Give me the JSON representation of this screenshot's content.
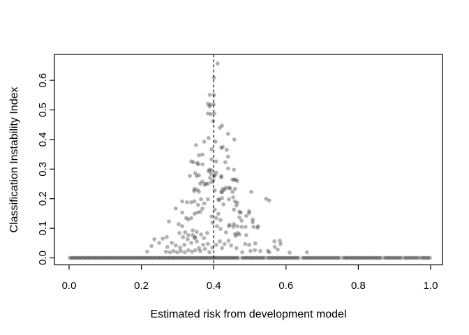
{
  "figure": {
    "background": "#ffffff",
    "title": ""
  },
  "chart_data": {
    "type": "scatter",
    "title": "",
    "xlabel": "Estimated risk from development model",
    "ylabel": "Classification Instability Index",
    "xlim": [
      -0.04,
      1.04
    ],
    "ylim": [
      -0.026,
      0.688
    ],
    "grid": false,
    "legend": "none",
    "axis_color": "#000000",
    "xticks": {
      "values": [
        0.0,
        0.2,
        0.4,
        0.6,
        0.8,
        1.0
      ],
      "labels": [
        "0.0",
        "0.2",
        "0.4",
        "0.6",
        "0.8",
        "1.0"
      ]
    },
    "yticks": {
      "values": [
        0.0,
        0.1,
        0.2,
        0.3,
        0.4,
        0.5,
        0.6
      ],
      "labels": [
        "0.0",
        "0.1",
        "0.2",
        "0.3",
        "0.4",
        "0.5",
        "0.6"
      ]
    },
    "vline": {
      "x": 0.4,
      "style": "dashed",
      "color": "#000000"
    },
    "point_style": {
      "color": "#000000",
      "opacity": 0.3,
      "radius_px": 2.9
    },
    "baseline_runs": [
      {
        "y": 0,
        "x_start": 0.002,
        "x_end": 0.468,
        "count": 110
      },
      {
        "y": 0,
        "x_start": 0.478,
        "x_end": 0.541,
        "count": 15
      },
      {
        "y": 0,
        "x_start": 0.549,
        "x_end": 0.635,
        "count": 20
      },
      {
        "y": 0,
        "x_start": 0.646,
        "x_end": 0.748,
        "count": 23
      },
      {
        "y": 0,
        "x_start": 0.758,
        "x_end": 0.863,
        "count": 24
      },
      {
        "y": 0,
        "x_start": 0.872,
        "x_end": 0.919,
        "count": 11
      },
      {
        "y": 0,
        "x_start": 0.927,
        "x_end": 0.967,
        "count": 9
      },
      {
        "y": 0,
        "x_start": 0.974,
        "x_end": 0.998,
        "count": 6
      }
    ],
    "points": [
      [
        0.411,
        0.657
      ],
      [
        0.401,
        0.609
      ],
      [
        0.389,
        0.551
      ],
      [
        0.401,
        0.551
      ],
      [
        0.384,
        0.521
      ],
      [
        0.391,
        0.517
      ],
      [
        0.4,
        0.519
      ],
      [
        0.388,
        0.512
      ],
      [
        0.384,
        0.488
      ],
      [
        0.392,
        0.486
      ],
      [
        0.402,
        0.488
      ],
      [
        0.398,
        0.462
      ],
      [
        0.417,
        0.44
      ],
      [
        0.423,
        0.447
      ],
      [
        0.44,
        0.419
      ],
      [
        0.457,
        0.4
      ],
      [
        0.425,
        0.375
      ],
      [
        0.386,
        0.405
      ],
      [
        0.405,
        0.393
      ],
      [
        0.374,
        0.393
      ],
      [
        0.351,
        0.381
      ],
      [
        0.394,
        0.367
      ],
      [
        0.421,
        0.372
      ],
      [
        0.436,
        0.365
      ],
      [
        0.359,
        0.347
      ],
      [
        0.369,
        0.349
      ],
      [
        0.394,
        0.333
      ],
      [
        0.44,
        0.342
      ],
      [
        0.344,
        0.323
      ],
      [
        0.357,
        0.316
      ],
      [
        0.338,
        0.326
      ],
      [
        0.355,
        0.321
      ],
      [
        0.369,
        0.316
      ],
      [
        0.388,
        0.298
      ],
      [
        0.386,
        0.293
      ],
      [
        0.407,
        0.326
      ],
      [
        0.432,
        0.323
      ],
      [
        0.44,
        0.302
      ],
      [
        0.456,
        0.298
      ],
      [
        0.334,
        0.277
      ],
      [
        0.349,
        0.286
      ],
      [
        0.353,
        0.277
      ],
      [
        0.359,
        0.279
      ],
      [
        0.369,
        0.258
      ],
      [
        0.378,
        0.251
      ],
      [
        0.363,
        0.251
      ],
      [
        0.375,
        0.247
      ],
      [
        0.384,
        0.251
      ],
      [
        0.392,
        0.284
      ],
      [
        0.401,
        0.277
      ],
      [
        0.39,
        0.27
      ],
      [
        0.399,
        0.263
      ],
      [
        0.407,
        0.288
      ],
      [
        0.394,
        0.296
      ],
      [
        0.403,
        0.279
      ],
      [
        0.421,
        0.277
      ],
      [
        0.421,
        0.272
      ],
      [
        0.394,
        0.256
      ],
      [
        0.452,
        0.265
      ],
      [
        0.461,
        0.265
      ],
      [
        0.456,
        0.263
      ],
      [
        0.465,
        0.26
      ],
      [
        0.347,
        0.233
      ],
      [
        0.355,
        0.23
      ],
      [
        0.346,
        0.226
      ],
      [
        0.359,
        0.223
      ],
      [
        0.421,
        0.223
      ],
      [
        0.43,
        0.23
      ],
      [
        0.442,
        0.237
      ],
      [
        0.452,
        0.223
      ],
      [
        0.504,
        0.223
      ],
      [
        0.425,
        0.233
      ],
      [
        0.434,
        0.237
      ],
      [
        0.446,
        0.235
      ],
      [
        0.459,
        0.233
      ],
      [
        0.403,
        0.228
      ],
      [
        0.423,
        0.222
      ],
      [
        0.313,
        0.191
      ],
      [
        0.326,
        0.188
      ],
      [
        0.338,
        0.188
      ],
      [
        0.347,
        0.191
      ],
      [
        0.384,
        0.198
      ],
      [
        0.413,
        0.198
      ],
      [
        0.423,
        0.202
      ],
      [
        0.454,
        0.205
      ],
      [
        0.465,
        0.186
      ],
      [
        0.427,
        0.181
      ],
      [
        0.415,
        0.195
      ],
      [
        0.442,
        0.198
      ],
      [
        0.459,
        0.191
      ],
      [
        0.463,
        0.177
      ],
      [
        0.365,
        0.198
      ],
      [
        0.374,
        0.184
      ],
      [
        0.357,
        0.179
      ],
      [
        0.295,
        0.167
      ],
      [
        0.369,
        0.167
      ],
      [
        0.545,
        0.2
      ],
      [
        0.553,
        0.194
      ],
      [
        0.313,
        0.153
      ],
      [
        0.324,
        0.135
      ],
      [
        0.33,
        0.13
      ],
      [
        0.338,
        0.135
      ],
      [
        0.347,
        0.149
      ],
      [
        0.355,
        0.153
      ],
      [
        0.363,
        0.156
      ],
      [
        0.403,
        0.163
      ],
      [
        0.413,
        0.149
      ],
      [
        0.394,
        0.14
      ],
      [
        0.407,
        0.135
      ],
      [
        0.419,
        0.128
      ],
      [
        0.475,
        0.153
      ],
      [
        0.498,
        0.151
      ],
      [
        0.456,
        0.163
      ],
      [
        0.471,
        0.156
      ],
      [
        0.498,
        0.158
      ],
      [
        0.471,
        0.137
      ],
      [
        0.49,
        0.142
      ],
      [
        0.508,
        0.13
      ],
      [
        0.477,
        0.126
      ],
      [
        0.508,
        0.121
      ],
      [
        0.276,
        0.123
      ],
      [
        0.303,
        0.114
      ],
      [
        0.313,
        0.107
      ],
      [
        0.397,
        0.119
      ],
      [
        0.409,
        0.107
      ],
      [
        0.419,
        0.098
      ],
      [
        0.442,
        0.107
      ],
      [
        0.454,
        0.105
      ],
      [
        0.465,
        0.107
      ],
      [
        0.477,
        0.105
      ],
      [
        0.488,
        0.105
      ],
      [
        0.51,
        0.105
      ],
      [
        0.523,
        0.107
      ],
      [
        0.444,
        0.112
      ],
      [
        0.456,
        0.114
      ],
      [
        0.521,
        0.102
      ],
      [
        0.305,
        0.084
      ],
      [
        0.321,
        0.086
      ],
      [
        0.434,
        0.086
      ],
      [
        0.459,
        0.081
      ],
      [
        0.467,
        0.084
      ],
      [
        0.342,
        0.093
      ],
      [
        0.353,
        0.088
      ],
      [
        0.382,
        0.084
      ],
      [
        0.365,
        0.079
      ],
      [
        0.33,
        0.077
      ],
      [
        0.315,
        0.07
      ],
      [
        0.342,
        0.077
      ],
      [
        0.349,
        0.07
      ],
      [
        0.236,
        0.063
      ],
      [
        0.259,
        0.065
      ],
      [
        0.27,
        0.07
      ],
      [
        0.328,
        0.063
      ],
      [
        0.347,
        0.067
      ],
      [
        0.373,
        0.067
      ],
      [
        0.338,
        0.051
      ],
      [
        0.353,
        0.056
      ],
      [
        0.284,
        0.051
      ],
      [
        0.249,
        0.051
      ],
      [
        0.295,
        0.042
      ],
      [
        0.307,
        0.035
      ],
      [
        0.319,
        0.044
      ],
      [
        0.272,
        0.037
      ],
      [
        0.228,
        0.04
      ],
      [
        0.49,
        0.077
      ],
      [
        0.461,
        0.074
      ],
      [
        0.471,
        0.079
      ],
      [
        0.487,
        0.047
      ],
      [
        0.498,
        0.044
      ],
      [
        0.515,
        0.049
      ],
      [
        0.568,
        0.056
      ],
      [
        0.583,
        0.058
      ],
      [
        0.585,
        0.047
      ],
      [
        0.569,
        0.037
      ],
      [
        0.417,
        0.056
      ],
      [
        0.43,
        0.047
      ],
      [
        0.407,
        0.044
      ],
      [
        0.441,
        0.058
      ],
      [
        0.448,
        0.042
      ],
      [
        0.384,
        0.047
      ],
      [
        0.371,
        0.044
      ],
      [
        0.396,
        0.035
      ],
      [
        0.423,
        0.033
      ],
      [
        0.463,
        0.033
      ],
      [
        0.479,
        0.019
      ],
      [
        0.502,
        0.023
      ],
      [
        0.514,
        0.026
      ],
      [
        0.529,
        0.023
      ],
      [
        0.55,
        0.023
      ],
      [
        0.577,
        0.028
      ],
      [
        0.61,
        0.018
      ],
      [
        0.554,
        0.019
      ],
      [
        0.658,
        0.019
      ],
      [
        0.363,
        0.023
      ],
      [
        0.376,
        0.03
      ],
      [
        0.388,
        0.019
      ],
      [
        0.359,
        0.033
      ],
      [
        0.349,
        0.026
      ],
      [
        0.34,
        0.021
      ],
      [
        0.33,
        0.026
      ],
      [
        0.32,
        0.019
      ],
      [
        0.309,
        0.023
      ],
      [
        0.299,
        0.019
      ],
      [
        0.289,
        0.023
      ],
      [
        0.279,
        0.019
      ],
      [
        0.268,
        0.021
      ],
      [
        0.216,
        0.021
      ]
    ]
  }
}
